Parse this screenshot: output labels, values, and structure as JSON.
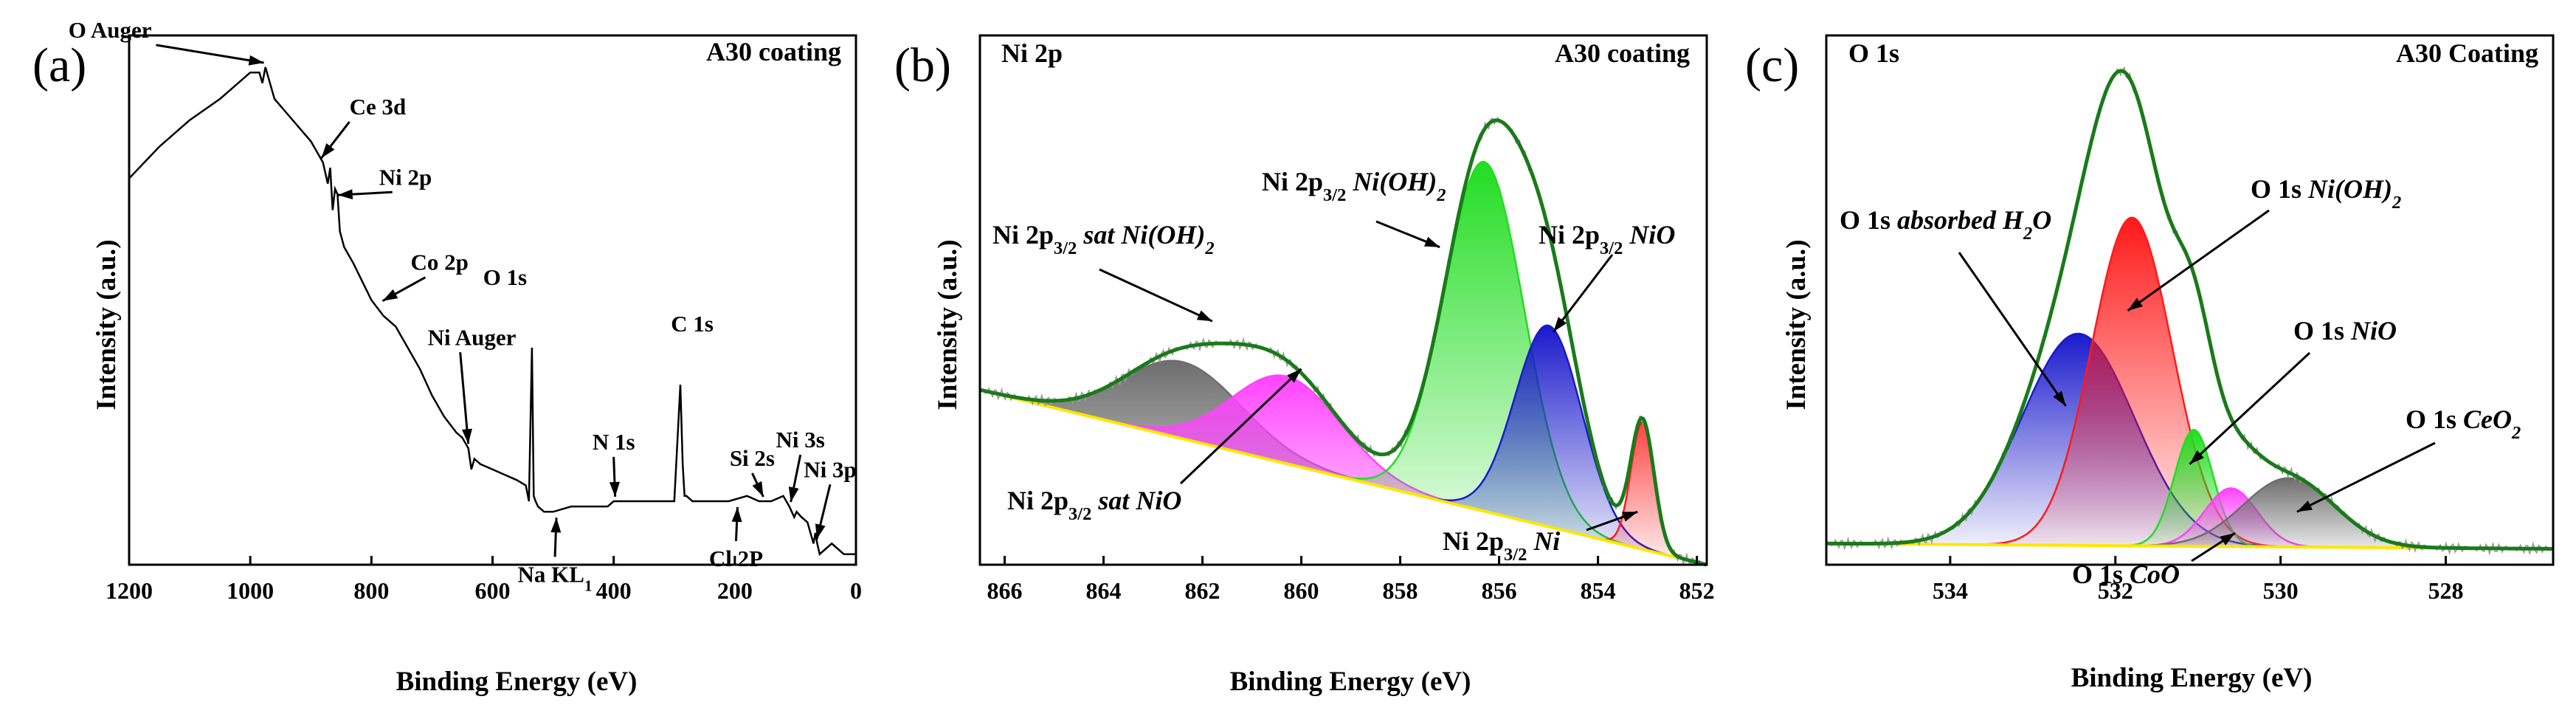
{
  "colors": {
    "envelope": "#1a7a1a",
    "baseline": "#ffe600",
    "raw": "#9a9a9a",
    "survey": "#000000",
    "ni_oh2": "#22dd22",
    "ni_metal": "#ff1a1a",
    "nio": "#1a1acc",
    "sat_oh2": "#6e6e6e",
    "sat_nio": "#ff44ff",
    "o_oh2": "#ff1a1a",
    "o_h2o": "#1a1acc",
    "o_nio": "#22dd22",
    "o_coo": "#ff44ff",
    "o_ceo2": "#6e6e6e"
  },
  "chart_data": [
    {
      "type": "line",
      "panel": "(a)",
      "title": "A30 coating",
      "xlabel": "Binding Energy (eV)",
      "ylabel": "Intensity (a.u.)",
      "xlim": [
        1200,
        0
      ],
      "xticks": [
        1200,
        1000,
        800,
        600,
        400,
        200,
        0
      ],
      "x": [
        1200,
        1150,
        1100,
        1050,
        1000,
        985,
        980,
        975,
        960,
        930,
        900,
        880,
        872,
        868,
        864,
        860,
        856,
        852,
        845,
        830,
        800,
        780,
        760,
        740,
        720,
        700,
        690,
        680,
        660,
        650,
        640,
        635,
        630,
        620,
        600,
        580,
        560,
        545,
        540,
        535,
        532,
        529,
        525,
        515,
        500,
        470,
        440,
        410,
        400,
        380,
        350,
        320,
        300,
        290,
        286,
        283,
        280,
        270,
        250,
        210,
        180,
        160,
        140,
        120,
        110,
        102,
        98,
        90,
        80,
        70,
        67,
        64,
        60,
        50,
        40,
        30,
        20,
        10,
        0
      ],
      "y": [
        0.73,
        0.79,
        0.84,
        0.88,
        0.93,
        0.93,
        0.91,
        0.94,
        0.88,
        0.84,
        0.8,
        0.76,
        0.72,
        0.75,
        0.67,
        0.71,
        0.7,
        0.63,
        0.6,
        0.57,
        0.5,
        0.47,
        0.45,
        0.41,
        0.37,
        0.32,
        0.3,
        0.28,
        0.25,
        0.24,
        0.22,
        0.18,
        0.2,
        0.19,
        0.18,
        0.17,
        0.16,
        0.15,
        0.12,
        0.41,
        0.13,
        0.12,
        0.11,
        0.1,
        0.1,
        0.11,
        0.11,
        0.11,
        0.12,
        0.12,
        0.12,
        0.12,
        0.12,
        0.34,
        0.19,
        0.13,
        0.13,
        0.12,
        0.12,
        0.12,
        0.13,
        0.12,
        0.12,
        0.13,
        0.11,
        0.09,
        0.1,
        0.09,
        0.08,
        0.04,
        0.06,
        0.04,
        0.02,
        0.03,
        0.04,
        0.03,
        0.02,
        0.02,
        0.02
      ],
      "annotations": [
        {
          "text": "O Auger",
          "x": 980,
          "y": 0.94
        },
        {
          "text": "Ce 3d",
          "x": 885,
          "y": 0.76
        },
        {
          "text": "Ni 2p",
          "x": 858,
          "y": 0.69
        },
        {
          "text": "Co 2p",
          "x": 784,
          "y": 0.49
        },
        {
          "text": "Ni Auger",
          "x": 640,
          "y": 0.22
        },
        {
          "text": "O 1s",
          "x": 531,
          "y": 0.41
        },
        {
          "text": "N 1s",
          "x": 400,
          "y": 0.12
        },
        {
          "text": "Na KL",
          "sub": "1",
          "x": 497,
          "y": 0.1
        },
        {
          "text": "C 1s",
          "x": 285,
          "y": 0.34
        },
        {
          "text": "Si 2s",
          "x": 153,
          "y": 0.12
        },
        {
          "text": "Cl 2P",
          "x": 198,
          "y": 0.12
        },
        {
          "text": "Ni 3s",
          "x": 110,
          "y": 0.11
        },
        {
          "text": "Ni 3p",
          "x": 67,
          "y": 0.04
        }
      ]
    },
    {
      "type": "area",
      "panel": "(b)",
      "title": "A30 coating",
      "subtitle": "Ni 2p",
      "xlabel": "Binding Energy (eV)",
      "ylabel": "Intensity (a.u.)",
      "xlim": [
        866.5,
        851.8
      ],
      "xticks": [
        866,
        864,
        862,
        860,
        858,
        856,
        854,
        852
      ],
      "baseline": [
        [
          866.5,
          0.33
        ],
        [
          851.8,
          0.0
        ]
      ],
      "series": [
        {
          "name": "Ni 2p3/2 sat Ni(OH)2",
          "peak_position": 862.4,
          "height": 0.145,
          "fwhm": 2.8,
          "color_key": "sat_oh2",
          "style": "mass"
        },
        {
          "name": "Ni 2p3/2 sat NiO",
          "peak_position": 860.3,
          "height": 0.165,
          "fwhm": 2.6,
          "color_key": "sat_nio",
          "style": "mass"
        },
        {
          "name": "Ni 2p3/2 Ni(OH)2",
          "peak_position": 856.3,
          "height": 0.66,
          "fwhm": 1.9,
          "color_key": "ni_oh2",
          "style": "fade"
        },
        {
          "name": "Ni 2p3/2 NiO",
          "peak_position": 855.0,
          "height": 0.38,
          "fwhm": 1.6,
          "color_key": "nio",
          "style": "fade"
        },
        {
          "name": "Ni 2p3/2 Ni",
          "peak_position": 853.1,
          "height": 0.24,
          "fwhm": 0.55,
          "color_key": "ni_metal",
          "style": "fade"
        }
      ],
      "annotations": [
        {
          "label": "Ni 2p",
          "sub": "3/2",
          "suffix": " sat Ni(OH)",
          "suffix_sub": "2",
          "suffix_italic": true,
          "target": [
            861.8,
            0.46
          ]
        },
        {
          "label": "Ni 2p",
          "sub": "3/2",
          "suffix": " Ni(OH)",
          "suffix_sub": "2",
          "suffix_italic": true,
          "target": [
            857.2,
            0.6
          ]
        },
        {
          "label": "Ni 2p",
          "sub": "3/2",
          "suffix": " NiO",
          "suffix_italic": true,
          "target": [
            854.9,
            0.44
          ]
        },
        {
          "label": "Ni 2p",
          "sub": "3/2",
          "suffix": " sat NiO",
          "suffix_italic": true,
          "target": [
            860.0,
            0.37
          ]
        },
        {
          "label": "Ni 2p",
          "sub": "3/2",
          "suffix": " Ni",
          "suffix_italic": true,
          "target": [
            853.2,
            0.1
          ]
        }
      ]
    },
    {
      "type": "area",
      "panel": "(c)",
      "title": "A30 Coating",
      "subtitle": "O 1s",
      "xlabel": "Binding Energy (eV)",
      "ylabel": "Intensity (a.u.)",
      "xlim": [
        535.5,
        526.7
      ],
      "xticks": [
        534,
        532,
        530,
        528
      ],
      "baseline": [
        [
          535.5,
          0.04
        ],
        [
          526.7,
          0.03
        ]
      ],
      "series": [
        {
          "name": "O 1s absorbed H2O",
          "peak_position": 532.45,
          "height": 0.4,
          "fwhm": 1.6,
          "color_key": "o_h2o",
          "style": "fade"
        },
        {
          "name": "O 1s Ni(OH)2",
          "peak_position": 531.8,
          "height": 0.62,
          "fwhm": 1.15,
          "color_key": "o_oh2",
          "style": "fade"
        },
        {
          "name": "O 1s NiO",
          "peak_position": 531.05,
          "height": 0.22,
          "fwhm": 0.55,
          "color_key": "o_nio",
          "style": "fade"
        },
        {
          "name": "O 1s CoO",
          "peak_position": 530.6,
          "height": 0.11,
          "fwhm": 0.75,
          "color_key": "o_coo",
          "style": "fade"
        },
        {
          "name": "O 1s CeO2",
          "peak_position": 529.9,
          "height": 0.13,
          "fwhm": 1.3,
          "color_key": "o_ceo2",
          "style": "mass"
        }
      ],
      "annotations": [
        {
          "label": "O 1s",
          "suffix": " absorbed H",
          "suffix_sub": "2",
          "suffix_tail": "O",
          "suffix_italic": true,
          "target": [
            532.6,
            0.3
          ]
        },
        {
          "label": "O 1s",
          "suffix": " Ni(OH)",
          "suffix_sub": "2",
          "suffix_italic": true,
          "target": [
            531.85,
            0.48
          ]
        },
        {
          "label": "O 1s",
          "suffix": " NiO",
          "suffix_italic": true,
          "target": [
            531.1,
            0.19
          ]
        },
        {
          "label": "O 1s",
          "suffix": " CeO",
          "suffix_sub": "2",
          "suffix_italic": true,
          "target": [
            529.8,
            0.1
          ]
        },
        {
          "label": "O 1s",
          "suffix": " CoO",
          "suffix_italic": true,
          "target": [
            530.55,
            0.06
          ]
        }
      ]
    }
  ]
}
